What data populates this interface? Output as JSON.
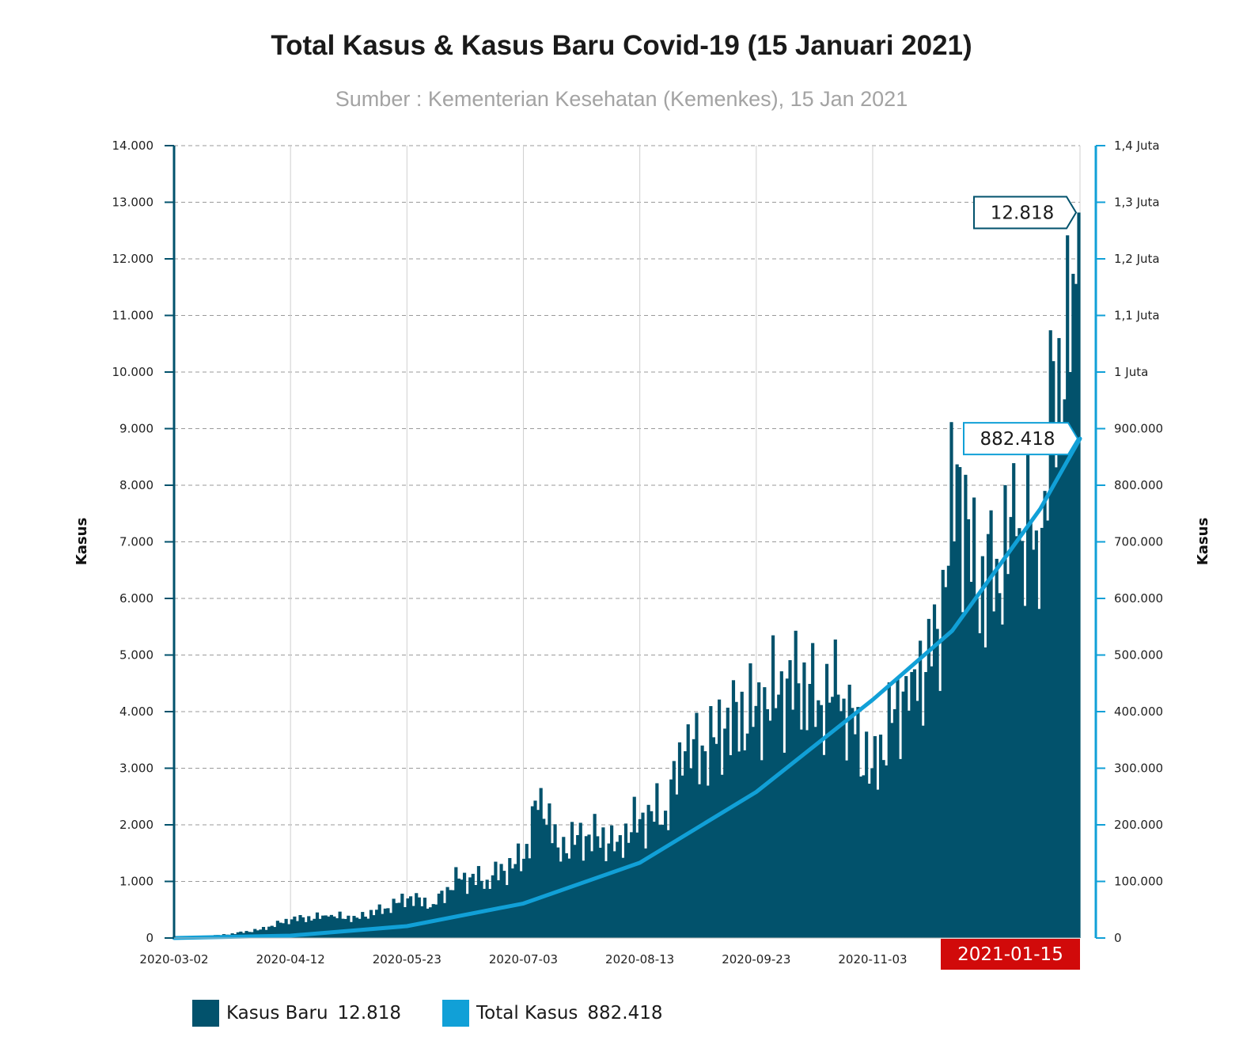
{
  "chart_data": {
    "type": "bar+line",
    "title": "Total Kasus & Kasus Baru Covid-19 (15 Januari 2021)",
    "subtitle": "Sumber : Kementerian Kesehatan (Kemenkes), 15 Jan 2021",
    "left_axis": {
      "label": "Kasus",
      "min": 0,
      "max": 14000,
      "ticks": [
        {
          "value": 0,
          "label": "0"
        },
        {
          "value": 1000,
          "label": "1.000"
        },
        {
          "value": 2000,
          "label": "2.000"
        },
        {
          "value": 3000,
          "label": "3.000"
        },
        {
          "value": 4000,
          "label": "4.000"
        },
        {
          "value": 5000,
          "label": "5.000"
        },
        {
          "value": 6000,
          "label": "6.000"
        },
        {
          "value": 7000,
          "label": "7.000"
        },
        {
          "value": 8000,
          "label": "8.000"
        },
        {
          "value": 9000,
          "label": "9.000"
        },
        {
          "value": 10000,
          "label": "10.000"
        },
        {
          "value": 11000,
          "label": "11.000"
        },
        {
          "value": 12000,
          "label": "12.000"
        },
        {
          "value": 13000,
          "label": "13.000"
        },
        {
          "value": 14000,
          "label": "14.000"
        }
      ]
    },
    "right_axis": {
      "label": "Kasus",
      "min": 0,
      "max": 1400000,
      "ticks": [
        {
          "value": 0,
          "label": "0"
        },
        {
          "value": 100000,
          "label": "100.000"
        },
        {
          "value": 200000,
          "label": "200.000"
        },
        {
          "value": 300000,
          "label": "300.000"
        },
        {
          "value": 400000,
          "label": "400.000"
        },
        {
          "value": 500000,
          "label": "500.000"
        },
        {
          "value": 600000,
          "label": "600.000"
        },
        {
          "value": 700000,
          "label": "700.000"
        },
        {
          "value": 800000,
          "label": "800.000"
        },
        {
          "value": 900000,
          "label": "900.000"
        },
        {
          "value": 1000000,
          "label": "1 Juta"
        },
        {
          "value": 1100000,
          "label": "1,1 Juta"
        },
        {
          "value": 1200000,
          "label": "1,2 Juta"
        },
        {
          "value": 1300000,
          "label": "1,3 Juta"
        },
        {
          "value": 1400000,
          "label": "1,4 Juta"
        }
      ]
    },
    "x_axis": {
      "start": "2020-03-02",
      "end": "2021-01-15",
      "tick_labels": [
        "2020-03-02",
        "2020-04-12",
        "2020-05-23",
        "2020-07-03",
        "2020-08-13",
        "2020-09-23",
        "2020-11-03"
      ],
      "highlight_label": "2021-01-15"
    },
    "grid": true,
    "legend_position": "bottom-left",
    "series": [
      {
        "name": "Kasus Baru",
        "type": "bar",
        "color": "#02526c",
        "latest_value": 12818,
        "latest_label": "12.818",
        "points": [
          [
            "2020-03-02",
            2
          ],
          [
            "2020-03-20",
            60
          ],
          [
            "2020-04-01",
            150
          ],
          [
            "2020-04-12",
            330
          ],
          [
            "2020-04-25",
            380
          ],
          [
            "2020-05-05",
            360
          ],
          [
            "2020-05-15",
            520
          ],
          [
            "2020-05-23",
            700
          ],
          [
            "2020-06-01",
            600
          ],
          [
            "2020-06-10",
            1050
          ],
          [
            "2020-06-20",
            1030
          ],
          [
            "2020-07-03",
            1400
          ],
          [
            "2020-07-09",
            2650
          ],
          [
            "2020-07-15",
            1600
          ],
          [
            "2020-07-25",
            1800
          ],
          [
            "2020-08-05",
            1700
          ],
          [
            "2020-08-13",
            2100
          ],
          [
            "2020-08-22",
            2250
          ],
          [
            "2020-08-29",
            3300
          ],
          [
            "2020-09-05",
            3300
          ],
          [
            "2020-09-12",
            3700
          ],
          [
            "2020-09-23",
            4100
          ],
          [
            "2020-10-01",
            4300
          ],
          [
            "2020-10-08",
            4500
          ],
          [
            "2020-10-15",
            4200
          ],
          [
            "2020-10-22",
            4300
          ],
          [
            "2020-10-28",
            3600
          ],
          [
            "2020-11-03",
            3000
          ],
          [
            "2020-11-10",
            3800
          ],
          [
            "2020-11-17",
            4700
          ],
          [
            "2020-11-24",
            4800
          ],
          [
            "2020-11-29",
            6200
          ],
          [
            "2020-12-03",
            8369
          ],
          [
            "2020-12-10",
            6000
          ],
          [
            "2020-12-17",
            6700
          ],
          [
            "2020-12-24",
            7100
          ],
          [
            "2020-12-31",
            7200
          ],
          [
            "2021-01-03",
            7900
          ],
          [
            "2021-01-08",
            10600
          ],
          [
            "2021-01-12",
            10000
          ],
          [
            "2021-01-14",
            11557
          ],
          [
            "2021-01-15",
            12818
          ]
        ]
      },
      {
        "name": "Total Kasus",
        "type": "line",
        "color": "#11a0d7",
        "latest_value": 882418,
        "latest_label": "882.418",
        "points": [
          [
            "2020-03-02",
            2
          ],
          [
            "2020-04-12",
            4200
          ],
          [
            "2020-05-23",
            21000
          ],
          [
            "2020-07-03",
            61000
          ],
          [
            "2020-08-13",
            133000
          ],
          [
            "2020-09-23",
            258000
          ],
          [
            "2020-11-03",
            421000
          ],
          [
            "2020-12-01",
            543000
          ],
          [
            "2021-01-01",
            758000
          ],
          [
            "2021-01-15",
            882418
          ]
        ]
      }
    ]
  }
}
